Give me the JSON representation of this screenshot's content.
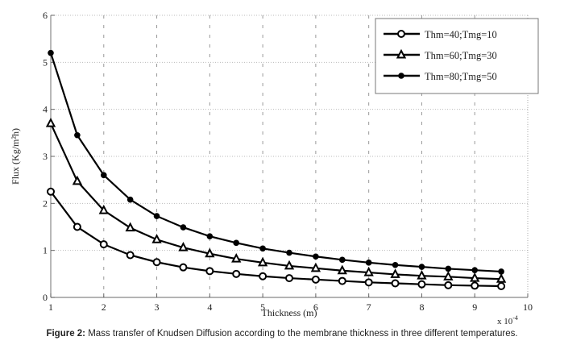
{
  "chart_data": {
    "type": "line",
    "xlabel": "Thickness (m)",
    "x_multiplier": "x 10",
    "x_multiplier_exp": "-4",
    "ylabel": "Flux (Kg/m²h)",
    "xlim": [
      1,
      10
    ],
    "ylim": [
      0,
      6
    ],
    "xticks": [
      "1",
      "2",
      "3",
      "4",
      "5",
      "6",
      "7",
      "8",
      "9",
      "10"
    ],
    "yticks": [
      "0",
      "1",
      "2",
      "3",
      "4",
      "5",
      "6"
    ],
    "grid": true,
    "legend_position": "top-right",
    "x": [
      1,
      1.5,
      2,
      2.5,
      3,
      3.5,
      4,
      4.5,
      5,
      5.5,
      6,
      6.5,
      7,
      7.5,
      8,
      8.5,
      9,
      9.5
    ],
    "series": [
      {
        "name": "Thm=40;Tmg=10",
        "marker": "circle-open",
        "values": [
          2.25,
          1.5,
          1.13,
          0.9,
          0.75,
          0.64,
          0.56,
          0.5,
          0.45,
          0.41,
          0.38,
          0.35,
          0.32,
          0.3,
          0.28,
          0.26,
          0.25,
          0.24
        ]
      },
      {
        "name": "Thm=60;Tmg=30",
        "marker": "triangle",
        "values": [
          3.7,
          2.47,
          1.85,
          1.48,
          1.23,
          1.06,
          0.93,
          0.82,
          0.74,
          0.67,
          0.62,
          0.57,
          0.53,
          0.49,
          0.46,
          0.44,
          0.41,
          0.39
        ]
      },
      {
        "name": "Thm=80;Tmg=50",
        "marker": "dot",
        "values": [
          5.2,
          3.45,
          2.6,
          2.08,
          1.73,
          1.49,
          1.3,
          1.16,
          1.04,
          0.95,
          0.87,
          0.8,
          0.74,
          0.69,
          0.65,
          0.61,
          0.58,
          0.55
        ]
      }
    ]
  },
  "caption": {
    "label": "Figure 2:",
    "text": " Mass transfer of Knudsen Diffusion according to the membrane thickness in three different temperatures."
  }
}
